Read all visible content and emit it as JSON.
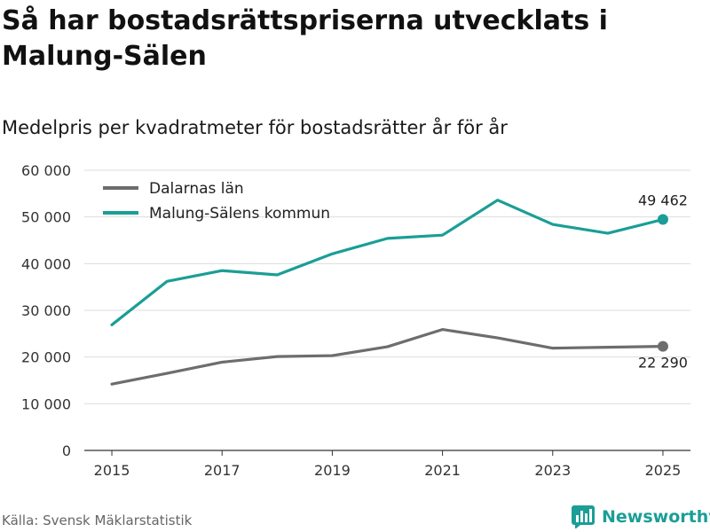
{
  "header": {
    "title": "Så har bostadsrättspriserna utvecklats i Malung-Sälen",
    "subtitle": "Medelpris per kvadratmeter för bostadsrätter år för år"
  },
  "footer": {
    "source": "Källa: Svensk Mäklarstatistik",
    "brand": "Newsworthy",
    "brand_icon": "bar-chart-logo-icon"
  },
  "colors": {
    "dalarna": "#6d6d6f",
    "malung": "#1a9e96",
    "grid": "#dddddd",
    "axis_text": "#333333"
  },
  "chart_data": {
    "type": "line",
    "title": "Så har bostadsrättspriserna utvecklats i Malung-Sälen",
    "subtitle": "Medelpris per kvadratmeter för bostadsrätter år för år",
    "xlabel": "",
    "ylabel": "",
    "x": [
      2015,
      2016,
      2017,
      2018,
      2019,
      2020,
      2021,
      2022,
      2023,
      2024,
      2025
    ],
    "xticks": [
      "2015",
      "2017",
      "2019",
      "2021",
      "2023",
      "2025"
    ],
    "xlim": [
      2014.5,
      2025.5
    ],
    "ylim": [
      0,
      60000
    ],
    "yticks": [
      "0",
      "10 000",
      "20 000",
      "30 000",
      "40 000",
      "50 000",
      "60 000"
    ],
    "grid": true,
    "legend_position": "top-left",
    "series": [
      {
        "name": "Dalarnas län",
        "key": "dalarna",
        "values": [
          14200,
          16500,
          18900,
          20100,
          20300,
          22200,
          25900,
          24100,
          21900,
          22100,
          22290
        ],
        "end_label": "22 290",
        "end_label_position": "below"
      },
      {
        "name": "Malung-Sälens kommun",
        "key": "malung",
        "values": [
          26900,
          36200,
          38500,
          37600,
          42100,
          45400,
          46100,
          53600,
          48400,
          46500,
          49462
        ],
        "end_label": "49 462",
        "end_label_position": "above"
      }
    ]
  }
}
